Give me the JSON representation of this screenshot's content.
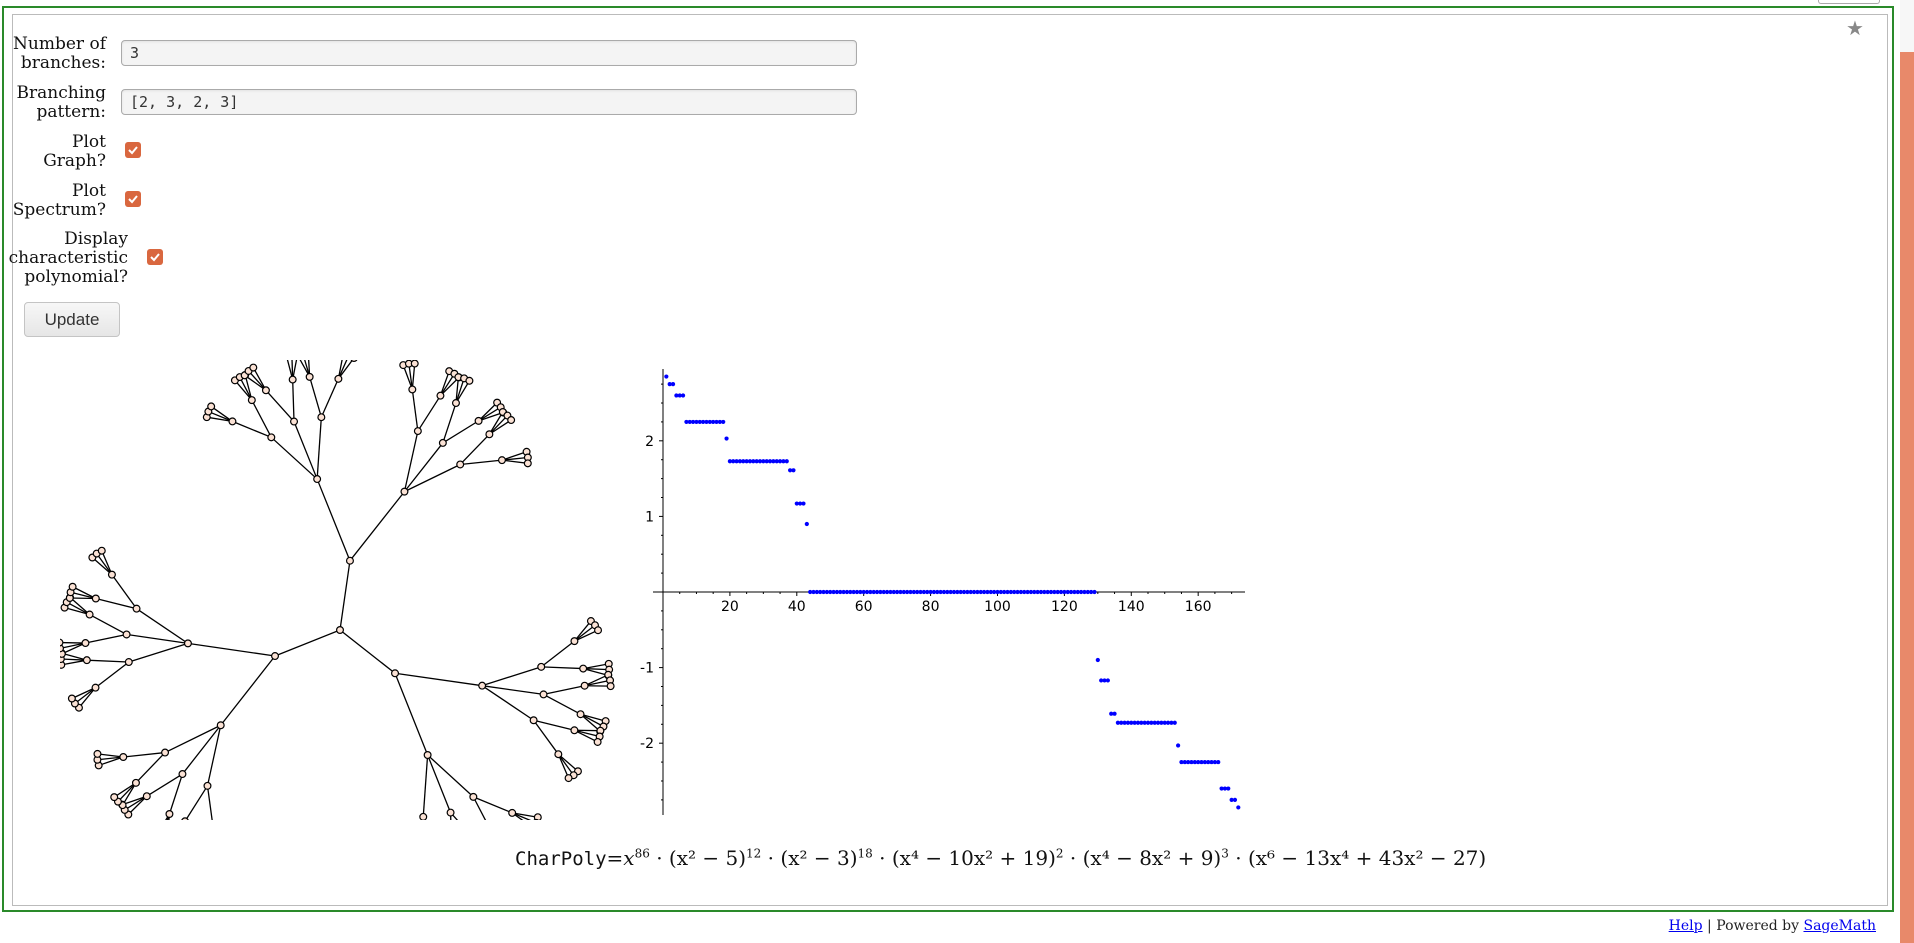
{
  "form": {
    "branches_label": [
      "Number of",
      "branches:"
    ],
    "branches_value": "3",
    "pattern_label": [
      "Branching",
      "pattern:"
    ],
    "pattern_value": "[2, 3, 2, 3]",
    "plot_graph_label": [
      "Plot",
      "Graph?"
    ],
    "plot_graph_checked": true,
    "plot_spectrum_label": [
      "Plot",
      "Spectrum?"
    ],
    "plot_spectrum_checked": true,
    "display_poly_label": [
      "Display",
      "characteristic",
      "polynomial?"
    ],
    "display_poly_checked": true,
    "update_label": "Update"
  },
  "star_icon": "star-icon",
  "accent_color": "#d9673f",
  "frame_color": "#2a8a2a",
  "tree": {
    "branches": 3,
    "pattern": [
      2,
      3,
      2,
      3
    ],
    "node_fill": "#fbe2d5",
    "node_stroke": "#000000"
  },
  "chart_data": {
    "type": "scatter",
    "x_ticks": [
      20,
      40,
      60,
      80,
      100,
      120,
      140,
      160
    ],
    "y_ticks": [
      -2,
      -1,
      1,
      2
    ],
    "xlim": [
      0,
      174
    ],
    "ylim": [
      -2.95,
      2.95
    ],
    "grid": false,
    "color": "#0000ff",
    "series": [
      {
        "values": [
          {
            "x": 1,
            "y": 2.85
          },
          {
            "x": 2,
            "y": 2.75
          },
          {
            "x": 3,
            "y": 2.75
          },
          {
            "x": 4,
            "y": 2.6
          },
          {
            "x": 5,
            "y": 2.6
          },
          {
            "x": 6,
            "y": 2.6
          },
          {
            "x": 7,
            "y": 2.25,
            "n": 12,
            "dx": 1
          },
          {
            "x": 19,
            "y": 2.03
          },
          {
            "x": 20,
            "y": 1.73,
            "n": 18,
            "dx": 1
          },
          {
            "x": 38,
            "y": 1.61
          },
          {
            "x": 39,
            "y": 1.61
          },
          {
            "x": 40,
            "y": 1.17
          },
          {
            "x": 41,
            "y": 1.17
          },
          {
            "x": 42,
            "y": 1.17
          },
          {
            "x": 43,
            "y": 0.9
          },
          {
            "x": 44,
            "y": 0,
            "n": 86,
            "dx": 1
          },
          {
            "x": 130,
            "y": -0.9
          },
          {
            "x": 131,
            "y": -1.17
          },
          {
            "x": 132,
            "y": -1.17
          },
          {
            "x": 133,
            "y": -1.17
          },
          {
            "x": 134,
            "y": -1.61
          },
          {
            "x": 135,
            "y": -1.61
          },
          {
            "x": 136,
            "y": -1.73,
            "n": 18,
            "dx": 1
          },
          {
            "x": 154,
            "y": -2.03
          },
          {
            "x": 155,
            "y": -2.25,
            "n": 12,
            "dx": 1
          },
          {
            "x": 167,
            "y": -2.6
          },
          {
            "x": 168,
            "y": -2.6
          },
          {
            "x": 169,
            "y": -2.6
          },
          {
            "x": 170,
            "y": -2.75
          },
          {
            "x": 171,
            "y": -2.75
          },
          {
            "x": 172,
            "y": -2.85
          }
        ]
      }
    ]
  },
  "charpoly": {
    "prefix": "CharPoly",
    "eq": "=",
    "terms": [
      {
        "base": "x",
        "exp": "86",
        "plain": true
      },
      {
        "expr": "(x² − 5)",
        "exp": "12"
      },
      {
        "expr": "(x² − 3)",
        "exp": "18"
      },
      {
        "expr": "(x⁴ − 10x² + 19)",
        "exp": "2"
      },
      {
        "expr": "(x⁴ − 8x² + 9)",
        "exp": "3"
      },
      {
        "expr": "(x⁶ − 13x⁴ + 43x² − 27)",
        "exp": ""
      }
    ]
  },
  "footer": {
    "help": "Help",
    "sep": " | Powered by ",
    "sagemath": "SageMath"
  }
}
